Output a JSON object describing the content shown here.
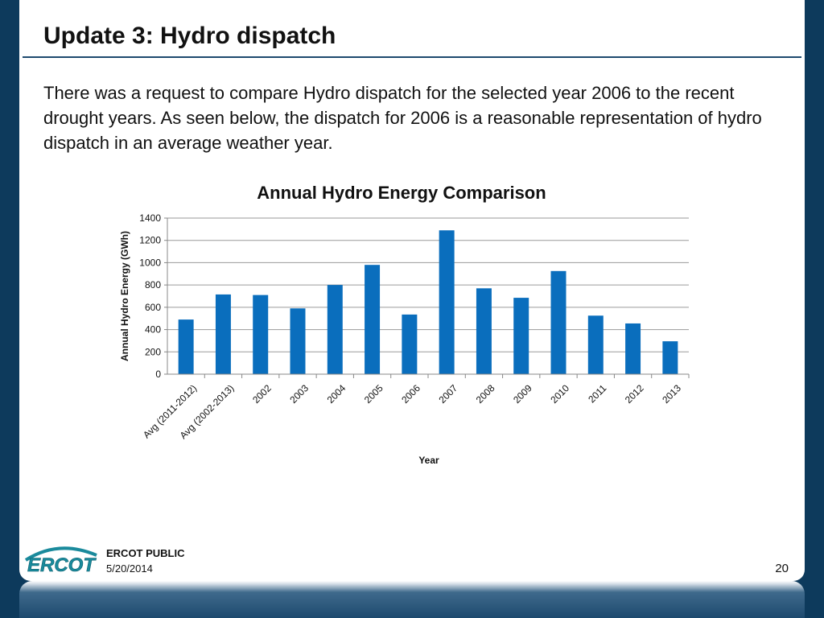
{
  "slide": {
    "title": "Update 3: Hydro dispatch",
    "body": "There was a request to compare Hydro dispatch for the selected year 2006 to the recent drought years. As seen below, the dispatch for 2006 is a reasonable representation of hydro dispatch in an average weather year.",
    "footer_label": "ERCOT PUBLIC",
    "footer_date": "5/20/2014",
    "page_number": "20",
    "logo_text": "ERCOT",
    "colors": {
      "accent": "#1d4a6e",
      "logo": "#1a8a9c"
    }
  },
  "chart_data": {
    "type": "bar",
    "title": "Annual Hydro Energy Comparison",
    "xlabel": "Year",
    "ylabel": "Annual Hydro Energy (GWh)",
    "ylim": [
      0,
      1400
    ],
    "yticks": [
      0,
      200,
      400,
      600,
      800,
      1000,
      1200,
      1400
    ],
    "grid": true,
    "bar_color": "#0a6ebd",
    "categories": [
      "Avg (2011-2012)",
      "Avg (2002-2013)",
      "2002",
      "2003",
      "2004",
      "2005",
      "2006",
      "2007",
      "2008",
      "2009",
      "2010",
      "2011",
      "2012",
      "2013"
    ],
    "values": [
      490,
      715,
      710,
      590,
      800,
      980,
      535,
      1290,
      770,
      685,
      925,
      525,
      455,
      295
    ]
  }
}
